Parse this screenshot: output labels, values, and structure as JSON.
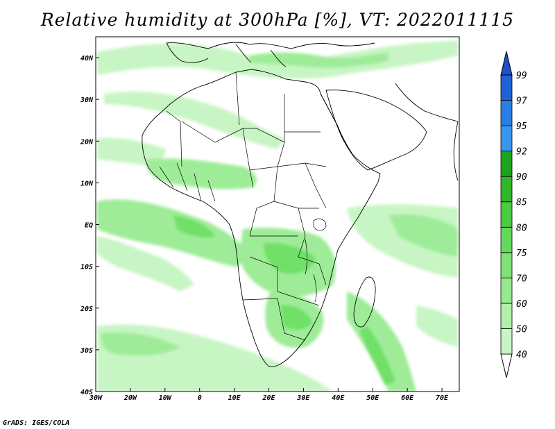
{
  "title": "Relative humidity at 300hPa [%], VT: 2022011115",
  "credit": "GrADS: IGES/COLA",
  "map": {
    "lon_range": [
      -30,
      75
    ],
    "lat_range": [
      -40,
      45
    ],
    "lon_ticks": [
      {
        "value": -30,
        "label": "30W"
      },
      {
        "value": -20,
        "label": "20W"
      },
      {
        "value": -10,
        "label": "10W"
      },
      {
        "value": 0,
        "label": "0"
      },
      {
        "value": 10,
        "label": "10E"
      },
      {
        "value": 20,
        "label": "20E"
      },
      {
        "value": 30,
        "label": "30E"
      },
      {
        "value": 40,
        "label": "40E"
      },
      {
        "value": 50,
        "label": "50E"
      },
      {
        "value": 60,
        "label": "60E"
      },
      {
        "value": 70,
        "label": "70E"
      }
    ],
    "lat_ticks": [
      {
        "value": 40,
        "label": "40N"
      },
      {
        "value": 30,
        "label": "30N"
      },
      {
        "value": 20,
        "label": "20N"
      },
      {
        "value": 10,
        "label": "10N"
      },
      {
        "value": 0,
        "label": "EQ"
      },
      {
        "value": -10,
        "label": "10S"
      },
      {
        "value": -20,
        "label": "20S"
      },
      {
        "value": -30,
        "label": "30S"
      },
      {
        "value": -40,
        "label": "40S"
      }
    ],
    "colors": {
      "frame": "#000000",
      "coast": "#000000",
      "humid_light": "#c8f5c4",
      "humid_mid": "#9eec98",
      "humid_high": "#6fe068"
    }
  },
  "colorbar": {
    "labels": [
      "40",
      "50",
      "60",
      "70",
      "75",
      "80",
      "85",
      "90",
      "92",
      "95",
      "97",
      "99"
    ],
    "colors": [
      "#e8fce6",
      "#c8f5c4",
      "#b0f0aa",
      "#96ea8e",
      "#7ee276",
      "#64d95c",
      "#4acc42",
      "#2fb82a",
      "#1ea41a",
      "#3a96f0",
      "#2a7ee6",
      "#1e62d8"
    ],
    "top_arrow_color": "#1e50c8",
    "bottom_arrow_color": "#ffffff"
  }
}
